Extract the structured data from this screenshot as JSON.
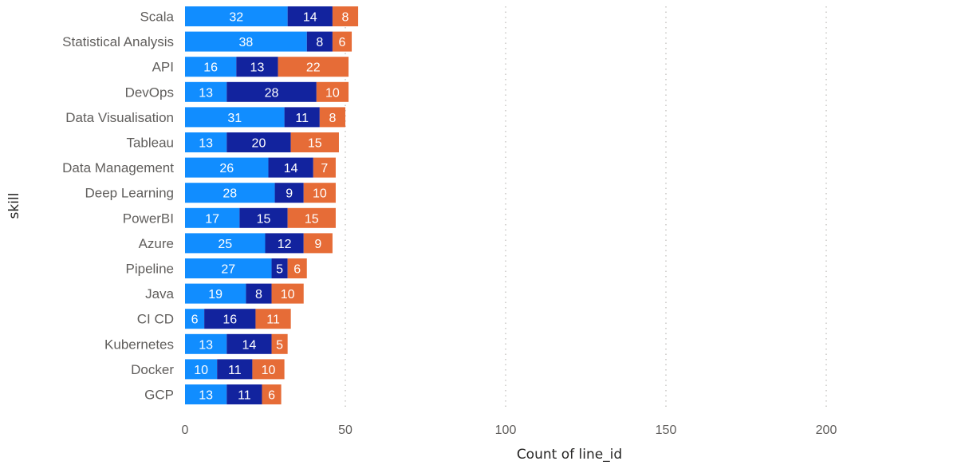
{
  "chart_data": {
    "type": "bar",
    "orientation": "horizontal",
    "stacked": true,
    "xlabel": "Count of line_id",
    "ylabel": "skill",
    "xlim": [
      0,
      250
    ],
    "xticks": [
      0,
      50,
      100,
      150,
      200
    ],
    "grid": true,
    "legend": "none",
    "categories": [
      "Scala",
      "Statistical Analysis",
      "API",
      "DevOps",
      "Data Visualisation",
      "Tableau",
      "Data Management",
      "Deep Learning",
      "PowerBI",
      "Azure",
      "Pipeline",
      "Java",
      "CI CD",
      "Kubernetes",
      "Docker",
      "GCP"
    ],
    "series": [
      {
        "color": "#118dff",
        "values": [
          32,
          38,
          16,
          13,
          31,
          13,
          26,
          28,
          17,
          25,
          27,
          19,
          6,
          13,
          10,
          13
        ]
      },
      {
        "color": "#12239e",
        "values": [
          14,
          8,
          13,
          28,
          11,
          20,
          14,
          9,
          15,
          12,
          5,
          8,
          16,
          14,
          11,
          11
        ]
      },
      {
        "color": "#e66c37",
        "values": [
          8,
          6,
          22,
          10,
          8,
          15,
          7,
          10,
          15,
          9,
          6,
          10,
          11,
          5,
          10,
          6
        ]
      }
    ]
  }
}
